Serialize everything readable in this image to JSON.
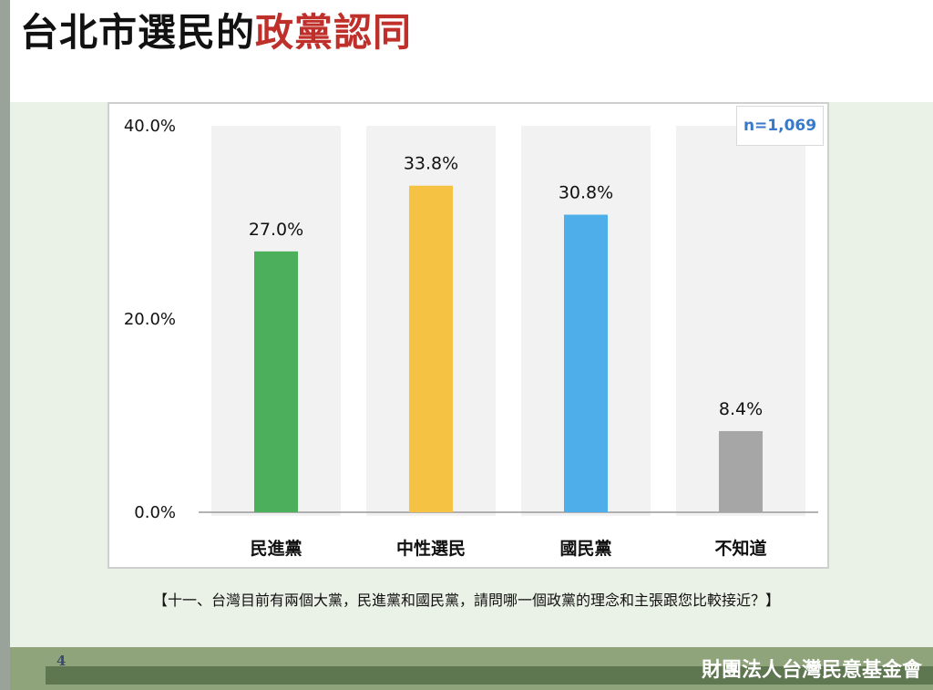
{
  "title": {
    "main": "台北市選民的",
    "accent": "政黨認同"
  },
  "sample": "n=1,069",
  "question": "【十一、台灣目前有兩個大黨，民進黨和國民黨，請問哪一個政黨的理念和主張跟您比較接近？】",
  "page_number": "4",
  "organization": "財團法人台灣民意基金會",
  "chart_data": {
    "type": "bar",
    "categories": [
      "民進黨",
      "中性選民",
      "國民黨",
      "不知道"
    ],
    "values": [
      27.0,
      33.8,
      30.8,
      8.4
    ],
    "value_labels": [
      "27.0%",
      "33.8%",
      "30.8%",
      "8.4%"
    ],
    "colors": [
      "#4caf5b",
      "#f5c244",
      "#4eaeea",
      "#a6a6a6"
    ],
    "ylim": [
      0,
      40
    ],
    "yticks": [
      0,
      20,
      40
    ],
    "ytick_labels": [
      "0.0%",
      "20.0%",
      "40.0%"
    ],
    "grid": false
  }
}
